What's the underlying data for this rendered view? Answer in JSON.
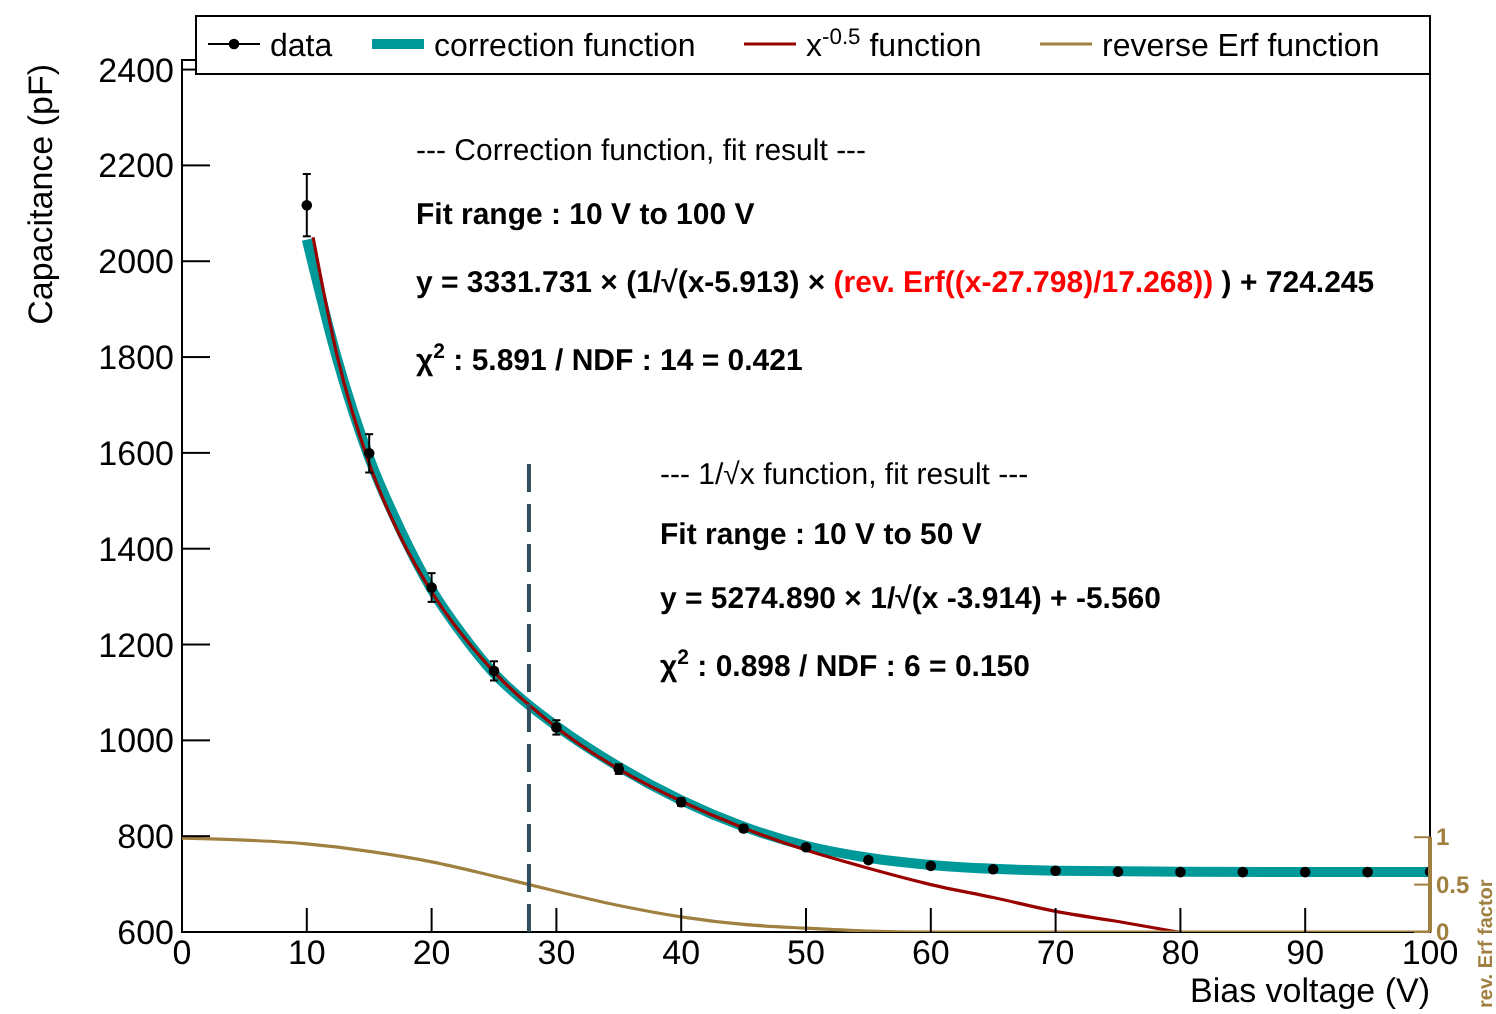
{
  "chart_data": {
    "type": "line",
    "xlabel": "Bias voltage (V)",
    "ylabel": "Capacitance (pF)",
    "y2label": "rev. Erf factor",
    "xlim": [
      0,
      100
    ],
    "xticks": [
      0,
      10,
      20,
      30,
      40,
      50,
      60,
      70,
      80,
      90,
      100
    ],
    "ylim": [
      600,
      2420
    ],
    "yticks": [
      600,
      800,
      1000,
      1200,
      1400,
      1600,
      1800,
      2000,
      2200,
      2400
    ],
    "y2lim": [
      0,
      9.2
    ],
    "y2ticks": [
      0,
      0.5,
      1
    ],
    "legend": "top",
    "grid": false,
    "series": [
      {
        "name": "data",
        "type": "scatter",
        "marker": "circle",
        "color": "#000000",
        "x": [
          10,
          15,
          20,
          25,
          30,
          35,
          40,
          45,
          50,
          55,
          60,
          65,
          70,
          75,
          80,
          85,
          90,
          95,
          100
        ],
        "values": [
          2117,
          1599,
          1319,
          1145,
          1027,
          940,
          871,
          816,
          777,
          750,
          738,
          731,
          728,
          726,
          725,
          725,
          725,
          725,
          726
        ],
        "errors": [
          65,
          40,
          30,
          20,
          15,
          10,
          8,
          6,
          5,
          5,
          5,
          5,
          5,
          5,
          5,
          5,
          5,
          5,
          5
        ]
      },
      {
        "name": "correction function",
        "type": "line",
        "color": "#009999",
        "x": [
          10,
          12.5,
          15,
          17.5,
          20,
          22.5,
          25,
          27.5,
          30,
          35,
          40,
          45,
          50,
          55,
          60,
          65,
          70,
          80,
          90,
          100
        ],
        "values": [
          2045,
          1790,
          1590,
          1440,
          1315,
          1220,
          1140,
          1080,
          1030,
          945,
          875,
          820,
          780,
          755,
          740,
          732,
          728,
          726,
          725,
          725
        ]
      },
      {
        "name": "x$^{-0.5}$ function",
        "type": "line",
        "color": "#990000",
        "x": [
          10.5,
          12.5,
          15,
          17.5,
          20,
          25,
          30,
          35,
          40,
          45,
          50,
          55,
          60,
          65,
          70,
          75,
          79.8
        ],
        "values": [
          2050,
          1795,
          1578,
          1425,
          1310,
          1143,
          1027,
          940,
          873,
          817,
          771,
          733,
          699,
          672,
          643,
          622,
          600
        ]
      },
      {
        "name": "reverse Erf function",
        "type": "line",
        "axis": "y2",
        "color": "#a08040",
        "x": [
          0,
          5,
          10,
          15,
          20,
          25,
          30,
          35,
          40,
          45,
          50,
          55,
          60,
          70,
          80,
          90,
          100
        ],
        "values": [
          0.99,
          0.97,
          0.93,
          0.85,
          0.74,
          0.59,
          0.43,
          0.28,
          0.16,
          0.08,
          0.04,
          0.01,
          0,
          0,
          0,
          0,
          0
        ]
      }
    ],
    "ref_lines": [
      {
        "axis": "x",
        "value": 27.8,
        "color": "#2f4f5f",
        "line_style": "dashed"
      }
    ],
    "annotations": [
      "---  Correction function, fit result ---",
      "Fit range : 10 V to 100 V",
      "y = 3331.731 × (1/√(x-5.913) × ",
      "(rev. Erf((x-27.798)/17.268))",
      " ) + 724.245",
      "χ$^{2}$ : 5.891 / NDF : 14 = 0.421",
      "--- 1/√x function, fit result ---",
      "Fit range : 10 V to 50 V",
      "y = 5274.890 × 1/√(x -3.914) + -5.560",
      "χ$^{2}$ : 0.898 / NDF : 6 = 0.150"
    ]
  }
}
